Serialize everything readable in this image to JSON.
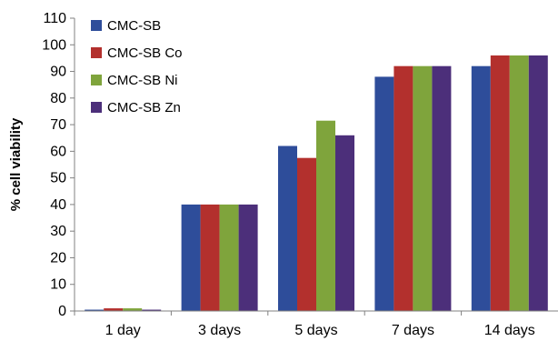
{
  "chart_data": {
    "type": "bar",
    "title": "",
    "xlabel": "",
    "ylabel": "% cell viability",
    "categories": [
      "1 day",
      "3 days",
      "5 days",
      "7 days",
      "14 days"
    ],
    "ylim": [
      0,
      110
    ],
    "yticks": [
      0,
      10,
      20,
      30,
      40,
      50,
      60,
      70,
      80,
      90,
      100,
      110
    ],
    "grid": false,
    "legend_position": "top-left",
    "series": [
      {
        "name": "CMC-SB",
        "color": "#2E4D9A",
        "values": [
          0.5,
          40,
          62,
          88,
          92
        ]
      },
      {
        "name": "CMC-SB Co",
        "color": "#B3302D",
        "values": [
          1,
          40,
          57.5,
          92,
          96
        ]
      },
      {
        "name": "CMC-SB Ni",
        "color": "#7FA43C",
        "values": [
          1,
          40,
          71.5,
          92,
          96
        ]
      },
      {
        "name": "CMC-SB Zn",
        "color": "#4C2F7A",
        "values": [
          0.5,
          40,
          66,
          92,
          96
        ]
      }
    ]
  }
}
